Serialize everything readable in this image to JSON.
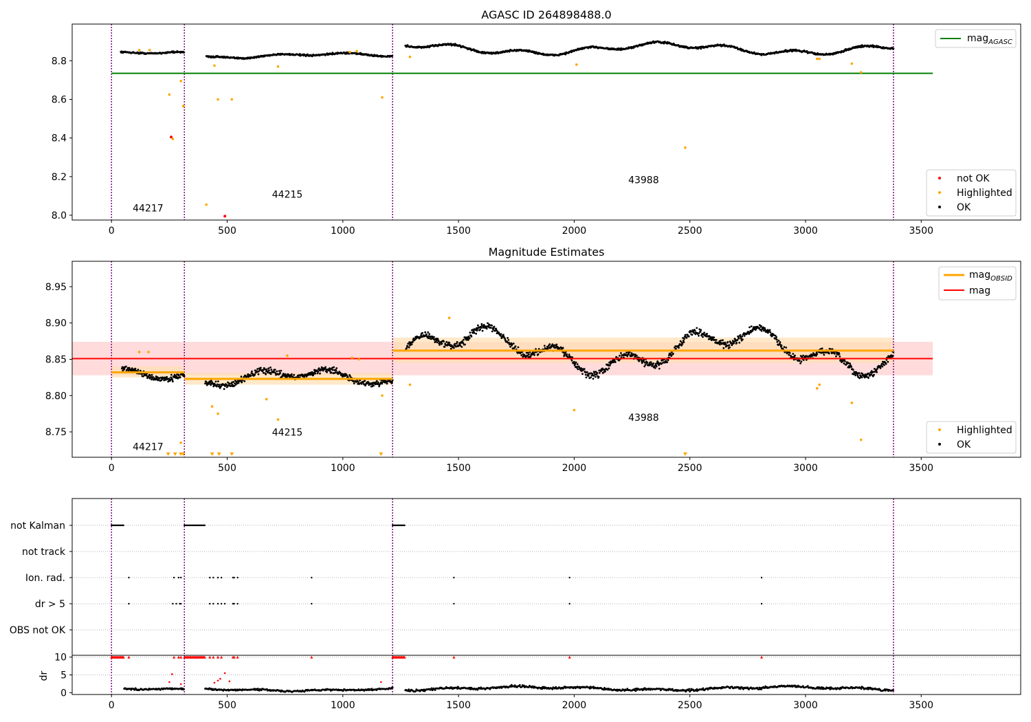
{
  "colors": {
    "ok": "#000000",
    "highlighted": "#ffa500",
    "not_ok": "#ff0000",
    "agasc_line": "#008000",
    "obsid_line": "#ffa500",
    "mag_line": "#ff0000",
    "mag_band": "#ffcccc",
    "obsid_band": "#ffe0b3",
    "obsid_boundary": "#800080",
    "grid": "#b0b0b0"
  },
  "chart_data": [
    {
      "id": "agasc",
      "type": "scatter",
      "title": "AGASC ID 264898488.0",
      "xlim": [
        -170,
        3930
      ],
      "ylim": [
        7.975,
        8.99
      ],
      "xticks": [
        0,
        500,
        1000,
        1500,
        2000,
        2500,
        3000,
        3500
      ],
      "xtick_labels": [
        "0",
        "500",
        "1000",
        "1500",
        "2000",
        "2500",
        "3000",
        "3500"
      ],
      "yticks": [
        8.0,
        8.2,
        8.4,
        8.6,
        8.8
      ],
      "ytick_labels": [
        "8.0",
        "8.2",
        "8.4",
        "8.6",
        "8.8"
      ],
      "obsid_boundaries": [
        0,
        315,
        1215,
        3380
      ],
      "obsid_labels": [
        {
          "text": "44217",
          "x": 158,
          "y": 8.02
        },
        {
          "text": "44215",
          "x": 760,
          "y": 8.09
        },
        {
          "text": "43988",
          "x": 2300,
          "y": 8.165
        }
      ],
      "hlines": [
        {
          "name": "mag_{AGASC}",
          "y": 8.735,
          "x": [
            0,
            3550
          ],
          "color": "#008000"
        }
      ],
      "series_ok": {
        "name": "OK",
        "segments": [
          {
            "x": [
              40,
              315
            ],
            "base": 8.835,
            "amp": 0.008,
            "noise": 0.006
          },
          {
            "x": [
              410,
              1215
            ],
            "base": 8.825,
            "amp": 0.01,
            "noise": 0.006
          },
          {
            "x": [
              1270,
              3380
            ],
            "base": 8.862,
            "amp": 0.022,
            "noise": 0.007
          }
        ]
      },
      "series_highlighted": {
        "name": "Highlighted",
        "x": [
          120,
          165,
          250,
          265,
          300,
          310,
          410,
          445,
          460,
          520,
          720,
          1030,
          1060,
          1170,
          1290,
          2010,
          2480,
          3050,
          3060,
          3200,
          3240
        ],
        "y": [
          8.855,
          8.855,
          8.625,
          8.395,
          8.695,
          8.565,
          8.055,
          8.775,
          8.6,
          8.6,
          8.77,
          8.845,
          8.85,
          8.61,
          8.82,
          8.78,
          8.35,
          8.81,
          8.81,
          8.785,
          8.74
        ]
      },
      "series_not_ok": {
        "name": "not OK",
        "x": [
          258,
          490
        ],
        "y": [
          8.405,
          7.995
        ]
      },
      "legend_top": {
        "position": "top-right",
        "entries": [
          "mag_{AGASC}"
        ]
      },
      "legend_bottom": {
        "position": "bottom-right",
        "entries": [
          "not OK",
          "Highlighted",
          "OK"
        ]
      }
    },
    {
      "id": "magnitude",
      "type": "scatter",
      "title": "Magnitude Estimates",
      "xlim": [
        -170,
        3930
      ],
      "ylim": [
        8.715,
        8.985
      ],
      "xticks": [
        0,
        500,
        1000,
        1500,
        2000,
        2500,
        3000,
        3500
      ],
      "xtick_labels": [
        "0",
        "500",
        "1000",
        "1500",
        "2000",
        "2500",
        "3000",
        "3500"
      ],
      "yticks": [
        8.75,
        8.8,
        8.85,
        8.9,
        8.95
      ],
      "ytick_labels": [
        "8.75",
        "8.80",
        "8.85",
        "8.90",
        "8.95"
      ],
      "obsid_boundaries": [
        0,
        315,
        1215,
        3380
      ],
      "obsid_labels": [
        {
          "text": "44217",
          "x": 158,
          "y": 8.725
        },
        {
          "text": "44215",
          "x": 760,
          "y": 8.745
        },
        {
          "text": "43988",
          "x": 2300,
          "y": 8.765
        }
      ],
      "mag": {
        "name": "mag",
        "value": 8.851,
        "band": [
          8.828,
          8.874
        ],
        "x": [
          -170,
          3550
        ]
      },
      "mag_obsid": [
        {
          "x": [
            0,
            315
          ],
          "value": 8.832,
          "band": [
            8.825,
            8.84
          ]
        },
        {
          "x": [
            315,
            1215
          ],
          "value": 8.823,
          "band": [
            8.815,
            8.831
          ]
        },
        {
          "x": [
            1215,
            3380
          ],
          "value": 8.862,
          "band": [
            8.845,
            8.88
          ]
        }
      ],
      "series_ok": {
        "name": "OK",
        "segments": [
          {
            "x": [
              45,
              315
            ],
            "base": 8.835,
            "amp": 0.008,
            "noise": 0.006
          },
          {
            "x": [
              405,
              1215
            ],
            "base": 8.822,
            "amp": 0.01,
            "noise": 0.006
          },
          {
            "x": [
              1270,
              3380
            ],
            "base": 8.862,
            "amp": 0.022,
            "noise": 0.007
          }
        ]
      },
      "series_highlighted": {
        "name": "Highlighted",
        "x": [
          120,
          160,
          300,
          435,
          460,
          670,
          720,
          760,
          1040,
          1070,
          1170,
          1290,
          1460,
          2000,
          3050,
          3060,
          3200,
          3240
        ],
        "y": [
          8.86,
          8.86,
          8.735,
          8.785,
          8.775,
          8.795,
          8.767,
          8.855,
          8.852,
          8.85,
          8.8,
          8.815,
          8.907,
          8.78,
          8.81,
          8.815,
          8.79,
          8.739
        ]
      },
      "series_below": {
        "name": "Highlighted",
        "x": [
          245,
          275,
          300,
          310,
          435,
          465,
          520,
          1165,
          2480
        ]
      },
      "legend_top": {
        "position": "top-right",
        "entries": [
          "mag_{OBSID}",
          "mag"
        ]
      },
      "legend_bottom": {
        "position": "bottom-right",
        "entries": [
          "Highlighted",
          "OK"
        ]
      }
    },
    {
      "id": "flags",
      "type": "scatter",
      "xlim": [
        -170,
        3930
      ],
      "categories": [
        "not Kalman",
        "not track",
        "Ion. rad.",
        "dr > 5",
        "OBS not OK"
      ],
      "obsid_boundaries": [
        0,
        315,
        1215,
        3380
      ],
      "flags": {
        "not Kalman": {
          "ranges": [
            [
              0,
              55
            ],
            [
              315,
              405
            ],
            [
              1215,
              1270
            ]
          ],
          "points": []
        },
        "not track": {
          "ranges": [],
          "points": []
        },
        "Ion. rad.": {
          "ranges": [],
          "points": [
            75,
            270,
            290,
            300,
            425,
            440,
            460,
            475,
            525,
            530,
            545,
            865,
            1480,
            1980,
            2810
          ]
        },
        "dr > 5": {
          "ranges": [],
          "points": [
            75,
            265,
            280,
            295,
            300,
            425,
            440,
            460,
            475,
            490,
            525,
            530,
            545,
            865,
            1480,
            1980,
            2810
          ]
        },
        "OBS not OK": {
          "ranges": [],
          "points": []
        }
      }
    },
    {
      "id": "dr",
      "type": "scatter",
      "ylabel": "dr",
      "xlim": [
        -170,
        3930
      ],
      "ylim": [
        -0.5,
        10.5
      ],
      "xticks": [
        0,
        500,
        1000,
        1500,
        2000,
        2500,
        3000,
        3500
      ],
      "xtick_labels": [
        "0",
        "500",
        "1000",
        "1500",
        "2000",
        "2500",
        "3000",
        "3500"
      ],
      "yticks": [
        0,
        5,
        10
      ],
      "ytick_labels": [
        "0",
        "5",
        "10"
      ],
      "obsid_boundaries": [
        0,
        315,
        1215,
        3380
      ],
      "series_ok": {
        "name": "OK",
        "segments": [
          {
            "x": [
              55,
              315
            ],
            "base": 0.8,
            "amp": 0.3,
            "noise": 0.35
          },
          {
            "x": [
              405,
              1215
            ],
            "base": 0.9,
            "amp": 0.3,
            "noise": 0.35
          },
          {
            "x": [
              1270,
              3380
            ],
            "base": 1.2,
            "amp": 0.4,
            "noise": 0.45
          }
        ]
      },
      "capped": {
        "value": 10,
        "ranges": [
          [
            0,
            55
          ],
          [
            315,
            405
          ],
          [
            1215,
            1270
          ]
        ],
        "points": [
          75,
          270,
          290,
          300,
          425,
          440,
          460,
          475,
          525,
          530,
          545,
          865,
          1480,
          1980,
          2810
        ]
      },
      "series_highlighted_red": {
        "x": [
          250,
          262,
          300,
          445,
          460,
          470,
          490,
          510,
          1165
        ],
        "y": [
          3.0,
          5.2,
          2.4,
          2.8,
          3.4,
          3.9,
          5.5,
          3.2,
          3.0
        ]
      }
    }
  ]
}
